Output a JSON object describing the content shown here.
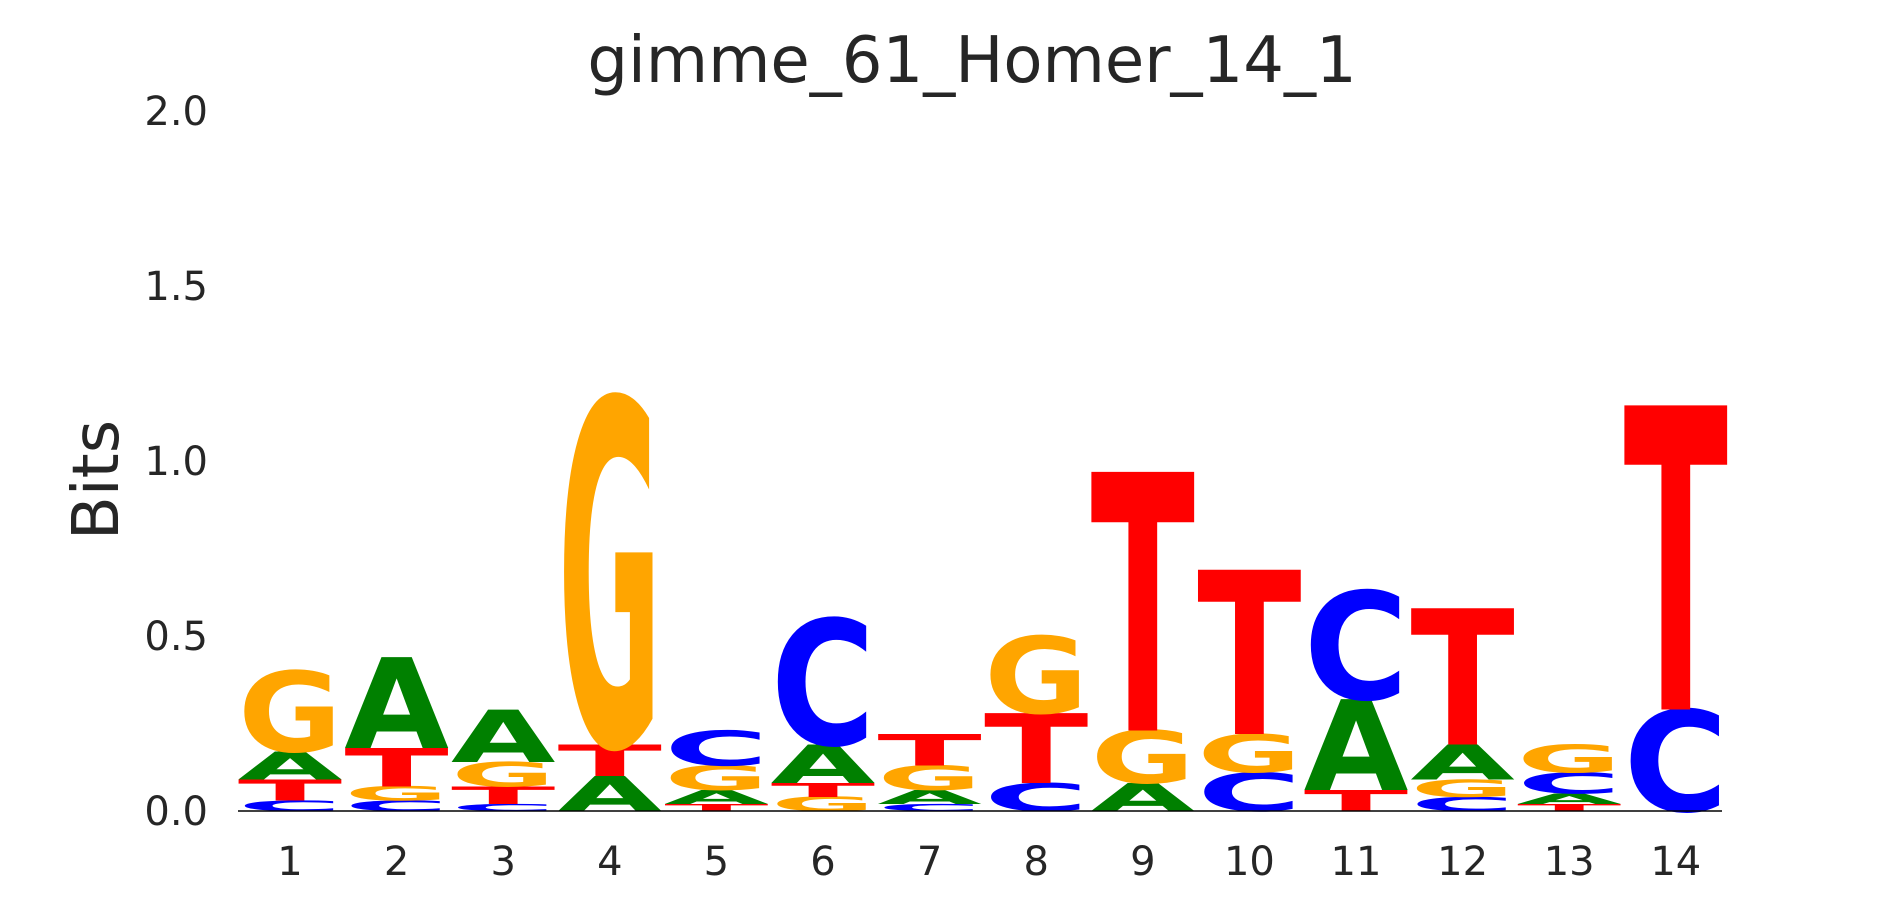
{
  "chart_data": {
    "type": "sequence-logo",
    "title": "gimme_61_Homer_14_1",
    "xlabel": "",
    "ylabel": "Bits",
    "ylim": [
      0,
      2
    ],
    "yticks": [
      "0.0",
      "0.5",
      "1.0",
      "1.5",
      "2.0"
    ],
    "categories": [
      "1",
      "2",
      "3",
      "4",
      "5",
      "6",
      "7",
      "8",
      "9",
      "10",
      "11",
      "12",
      "13",
      "14"
    ],
    "grid": false,
    "colors": {
      "A": "#008000",
      "C": "#0000ff",
      "G": "#ffa500",
      "T": "#ff0000"
    },
    "positions": [
      {
        "position": "1",
        "letters": [
          {
            "base": "C",
            "bits": 0.03
          },
          {
            "base": "T",
            "bits": 0.06
          },
          {
            "base": "A",
            "bits": 0.08
          },
          {
            "base": "G",
            "bits": 0.23
          }
        ]
      },
      {
        "position": "2",
        "letters": [
          {
            "base": "C",
            "bits": 0.03
          },
          {
            "base": "G",
            "bits": 0.04
          },
          {
            "base": "T",
            "bits": 0.11
          },
          {
            "base": "A",
            "bits": 0.26
          }
        ]
      },
      {
        "position": "3",
        "letters": [
          {
            "base": "C",
            "bits": 0.02
          },
          {
            "base": "T",
            "bits": 0.05
          },
          {
            "base": "G",
            "bits": 0.07
          },
          {
            "base": "A",
            "bits": 0.15
          }
        ]
      },
      {
        "position": "4",
        "letters": [
          {
            "base": "A",
            "bits": 0.1
          },
          {
            "base": "T",
            "bits": 0.09
          },
          {
            "base": "G",
            "bits": 0.99
          }
        ]
      },
      {
        "position": "5",
        "letters": [
          {
            "base": "T",
            "bits": 0.02
          },
          {
            "base": "A",
            "bits": 0.04
          },
          {
            "base": "G",
            "bits": 0.07
          },
          {
            "base": "C",
            "bits": 0.1
          }
        ]
      },
      {
        "position": "6",
        "letters": [
          {
            "base": "G",
            "bits": 0.04
          },
          {
            "base": "T",
            "bits": 0.04
          },
          {
            "base": "A",
            "bits": 0.11
          },
          {
            "base": "C",
            "bits": 0.36
          }
        ]
      },
      {
        "position": "7",
        "letters": [
          {
            "base": "C",
            "bits": 0.02
          },
          {
            "base": "A",
            "bits": 0.04
          },
          {
            "base": "G",
            "bits": 0.07
          },
          {
            "base": "T",
            "bits": 0.09
          }
        ]
      },
      {
        "position": "8",
        "letters": [
          {
            "base": "C",
            "bits": 0.08
          },
          {
            "base": "T",
            "bits": 0.2
          },
          {
            "base": "G",
            "bits": 0.22
          }
        ]
      },
      {
        "position": "9",
        "letters": [
          {
            "base": "A",
            "bits": 0.08
          },
          {
            "base": "G",
            "bits": 0.15
          },
          {
            "base": "T",
            "bits": 0.74
          }
        ]
      },
      {
        "position": "10",
        "letters": [
          {
            "base": "C",
            "bits": 0.11
          },
          {
            "base": "G",
            "bits": 0.11
          },
          {
            "base": "T",
            "bits": 0.47
          }
        ]
      },
      {
        "position": "11",
        "letters": [
          {
            "base": "T",
            "bits": 0.06
          },
          {
            "base": "A",
            "bits": 0.26
          },
          {
            "base": "C",
            "bits": 0.31
          }
        ]
      },
      {
        "position": "12",
        "letters": [
          {
            "base": "C",
            "bits": 0.04
          },
          {
            "base": "G",
            "bits": 0.05
          },
          {
            "base": "A",
            "bits": 0.1
          },
          {
            "base": "T",
            "bits": 0.39
          }
        ]
      },
      {
        "position": "13",
        "letters": [
          {
            "base": "T",
            "bits": 0.02
          },
          {
            "base": "A",
            "bits": 0.03
          },
          {
            "base": "C",
            "bits": 0.06
          },
          {
            "base": "G",
            "bits": 0.08
          }
        ]
      },
      {
        "position": "14",
        "letters": [
          {
            "base": "C",
            "bits": 0.29
          },
          {
            "base": "T",
            "bits": 0.87
          }
        ]
      }
    ]
  }
}
